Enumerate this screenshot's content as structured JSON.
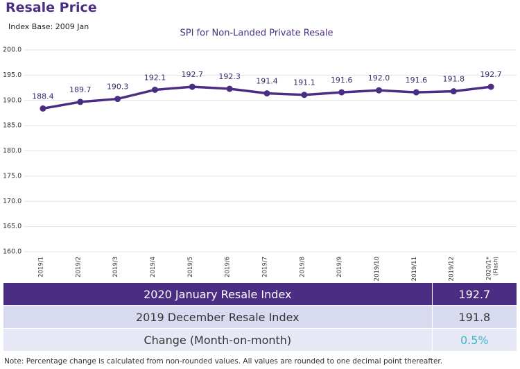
{
  "header": {
    "title": "Resale Price",
    "subtitle": "Index Base: 2009 Jan"
  },
  "chart_data": {
    "type": "line",
    "title": "SPI for Non-Landed Private Resale",
    "categories": [
      "2019/1",
      "2019/2",
      "2019/3",
      "2019/4",
      "2019/5",
      "2019/6",
      "2019/7",
      "2019/8",
      "2019/9",
      "2019/10",
      "2019/11",
      "2019/12",
      "2020/1*"
    ],
    "last_category_note": "(Flash)",
    "series": [
      {
        "name": "SPI",
        "color": "#4b2e83",
        "values": [
          188.4,
          189.7,
          190.3,
          192.1,
          192.7,
          192.3,
          191.4,
          191.1,
          191.6,
          192.0,
          191.6,
          191.8,
          192.7
        ],
        "value_labels": [
          "188.4",
          "189.7",
          "190.3",
          "192.1",
          "192.7",
          "192.3",
          "191.4",
          "191.1",
          "191.6",
          "192.0",
          "191.6",
          "191.8",
          "192.7"
        ]
      }
    ],
    "ylim": [
      160,
      200
    ],
    "yticks": [
      {
        "value": 160,
        "label": "160.0"
      },
      {
        "value": 165,
        "label": "165.0"
      },
      {
        "value": 170,
        "label": "170.0"
      },
      {
        "value": 175,
        "label": "175.0"
      },
      {
        "value": 180,
        "label": "180.0"
      },
      {
        "value": 185,
        "label": "185.0"
      },
      {
        "value": 190,
        "label": "190.0"
      },
      {
        "value": 195,
        "label": "195.0"
      },
      {
        "value": 200,
        "label": "200.0"
      }
    ],
    "grid": true
  },
  "table": {
    "rows": [
      [
        "2020 January Resale Index",
        "192.7"
      ],
      [
        "2019 December Resale Index",
        "191.8"
      ],
      [
        "Change (Month-on-month)",
        "0.5%"
      ]
    ]
  },
  "note": "Note: Percentage change is calculated from non-rounded values.  All values are rounded to one decimal point thereafter."
}
